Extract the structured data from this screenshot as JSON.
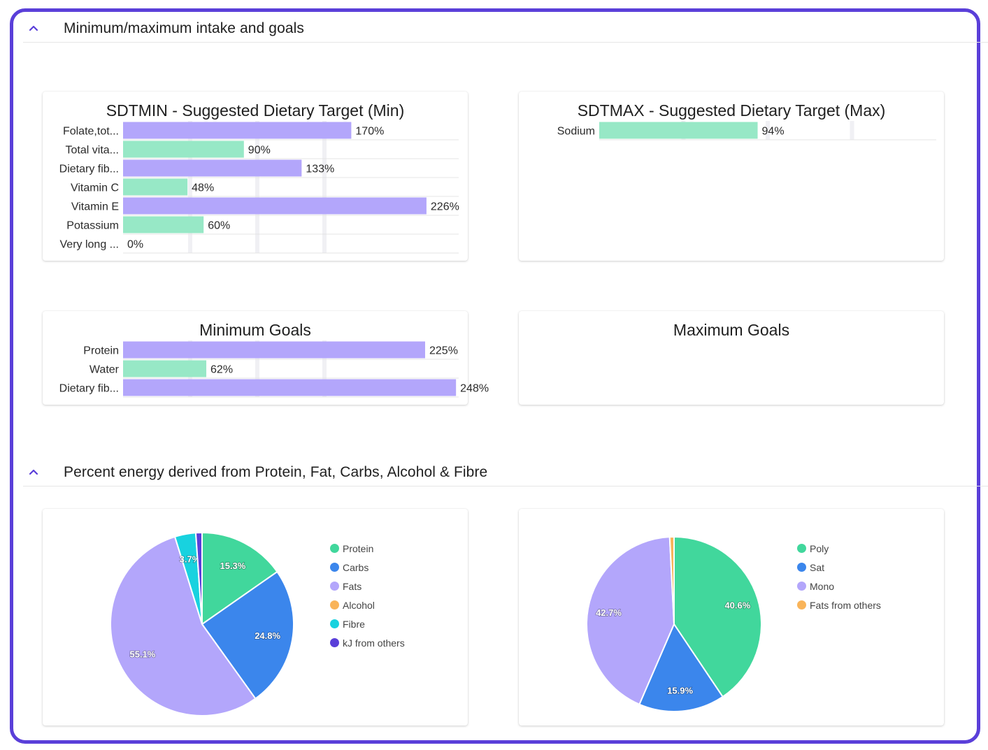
{
  "sections": {
    "intake": {
      "title": "Minimum/maximum intake and goals"
    },
    "energy": {
      "title": "Percent energy derived from Protein, Fat, Carbs, Alcohol & Fibre"
    }
  },
  "colors": {
    "frame": "#5a3fd9",
    "purple_bar": "#b3a6fb",
    "green_bar": "#97e8c6",
    "grid": "#f0f0f4"
  },
  "chart_data": [
    {
      "id": "sdtmin",
      "type": "bar",
      "orientation": "horizontal",
      "title": "SDTMIN - Suggested Dietary Target (Min)",
      "categories": [
        "Folate,tot...",
        "Total vita...",
        "Dietary fib...",
        "Vitamin C",
        "Vitamin E",
        "Potassium",
        "Very long ..."
      ],
      "values": [
        170,
        90,
        133,
        48,
        226,
        60,
        0
      ],
      "value_labels": [
        "170%",
        "90%",
        "133%",
        "48%",
        "226%",
        "60%",
        "0%"
      ],
      "colors": [
        "#b3a6fb",
        "#97e8c6",
        "#b3a6fb",
        "#97e8c6",
        "#b3a6fb",
        "#97e8c6",
        "#97e8c6"
      ],
      "xlim": [
        0,
        250
      ],
      "grid": true
    },
    {
      "id": "sdtmax",
      "type": "bar",
      "orientation": "horizontal",
      "title": "SDTMAX - Suggested Dietary Target (Max)",
      "categories": [
        "Sodium"
      ],
      "values": [
        94
      ],
      "value_labels": [
        "94%"
      ],
      "colors": [
        "#97e8c6"
      ],
      "xlim": [
        0,
        200
      ],
      "grid": true
    },
    {
      "id": "mingoals",
      "type": "bar",
      "orientation": "horizontal",
      "title": "Minimum Goals",
      "categories": [
        "Protein",
        "Water",
        "Dietary fib..."
      ],
      "values": [
        225,
        62,
        248
      ],
      "value_labels": [
        "225%",
        "62%",
        "248%"
      ],
      "colors": [
        "#b3a6fb",
        "#97e8c6",
        "#b3a6fb"
      ],
      "xlim": [
        0,
        250
      ],
      "grid": true
    },
    {
      "id": "maxgoals",
      "type": "bar",
      "orientation": "horizontal",
      "title": "Maximum Goals",
      "categories": [],
      "values": []
    },
    {
      "id": "energy",
      "type": "pie",
      "labels": [
        "Protein",
        "Carbs",
        "Fats",
        "Alcohol",
        "Fibre",
        "kJ from others"
      ],
      "values": [
        15.3,
        24.8,
        55.1,
        0,
        3.7,
        1.1
      ],
      "value_labels": [
        "15.3%",
        "24.8%",
        "55.1%",
        "",
        "3.7%",
        ""
      ],
      "colors": [
        "#41d79c",
        "#3b86ec",
        "#b3a6fb",
        "#f9b45a",
        "#18d2df",
        "#5a3fd9"
      ],
      "legend": "right"
    },
    {
      "id": "fats",
      "type": "pie",
      "labels": [
        "Poly",
        "Sat",
        "Mono",
        "Fats from others"
      ],
      "values": [
        40.6,
        15.9,
        42.7,
        0.8
      ],
      "value_labels": [
        "40.6%",
        "15.9%",
        "42.7%",
        ""
      ],
      "colors": [
        "#41d79c",
        "#3b86ec",
        "#b3a6fb",
        "#f9b45a"
      ],
      "legend": "right"
    }
  ]
}
